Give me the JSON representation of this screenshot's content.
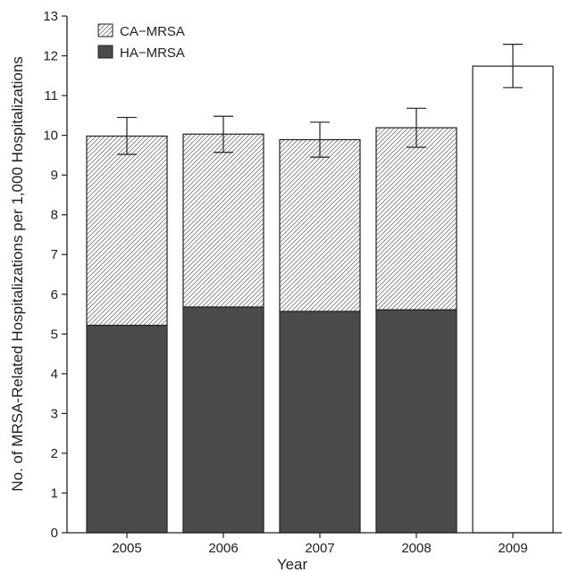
{
  "chart_data": {
    "type": "bar",
    "stacked": true,
    "categories": [
      "2005",
      "2006",
      "2007",
      "2008",
      "2009"
    ],
    "series": [
      {
        "name": "HA−MRSA",
        "fill": "#4a4a4a",
        "pattern": "solid",
        "values": [
          5.22,
          5.68,
          5.57,
          5.61,
          null
        ]
      },
      {
        "name": "CA−MRSA",
        "fill": "#ffffff",
        "pattern": "diagonal-hatch",
        "values": [
          4.76,
          4.35,
          4.32,
          4.58,
          null
        ]
      },
      {
        "name": "",
        "fill": "#ffffff",
        "pattern": "none",
        "values": [
          null,
          null,
          null,
          null,
          11.74
        ]
      }
    ],
    "totals": [
      9.98,
      10.03,
      9.89,
      10.19,
      11.74
    ],
    "error_bars": [
      {
        "low": 9.52,
        "high": 10.45
      },
      {
        "low": 9.57,
        "high": 10.48
      },
      {
        "low": 9.45,
        "high": 10.33
      },
      {
        "low": 9.7,
        "high": 10.68
      },
      {
        "low": 11.2,
        "high": 12.29
      }
    ],
    "xlabel": "Year",
    "ylabel": "No. of MRSA-Related Hospitalizations per 1,000 Hospitalizations",
    "ylim": [
      0,
      13
    ],
    "yticks": [
      0,
      1,
      2,
      3,
      4,
      5,
      6,
      7,
      8,
      9,
      10,
      11,
      12,
      13
    ],
    "legend": {
      "placement": "top-left",
      "entries": [
        {
          "label": "CA−MRSA",
          "pattern": "diagonal-hatch"
        },
        {
          "label": "HA−MRSA",
          "pattern": "solid"
        }
      ]
    },
    "grid": false,
    "colors": {
      "bar_dark": "#4a4a4a",
      "outline": "#222222",
      "hatch": "#777777"
    }
  }
}
